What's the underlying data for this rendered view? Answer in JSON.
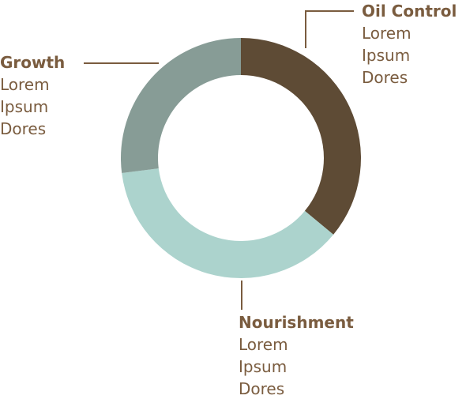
{
  "chart_data": {
    "type": "pie",
    "donut": true,
    "series": [
      {
        "name": "Oil Control",
        "value": 36,
        "color": "#5e4b35",
        "description": "Lorem\nIpsum\nDores"
      },
      {
        "name": "Nourishment",
        "value": 37,
        "color": "#acd3cd",
        "description": "Lorem\nIpsum\nDores"
      },
      {
        "name": "Growth",
        "value": 27,
        "color": "#879c96",
        "description": "Lorem\nIpsum\nDores"
      }
    ]
  },
  "colors": {
    "label_text": "#7a5c3f",
    "leader_line": "#7a5c3f"
  }
}
